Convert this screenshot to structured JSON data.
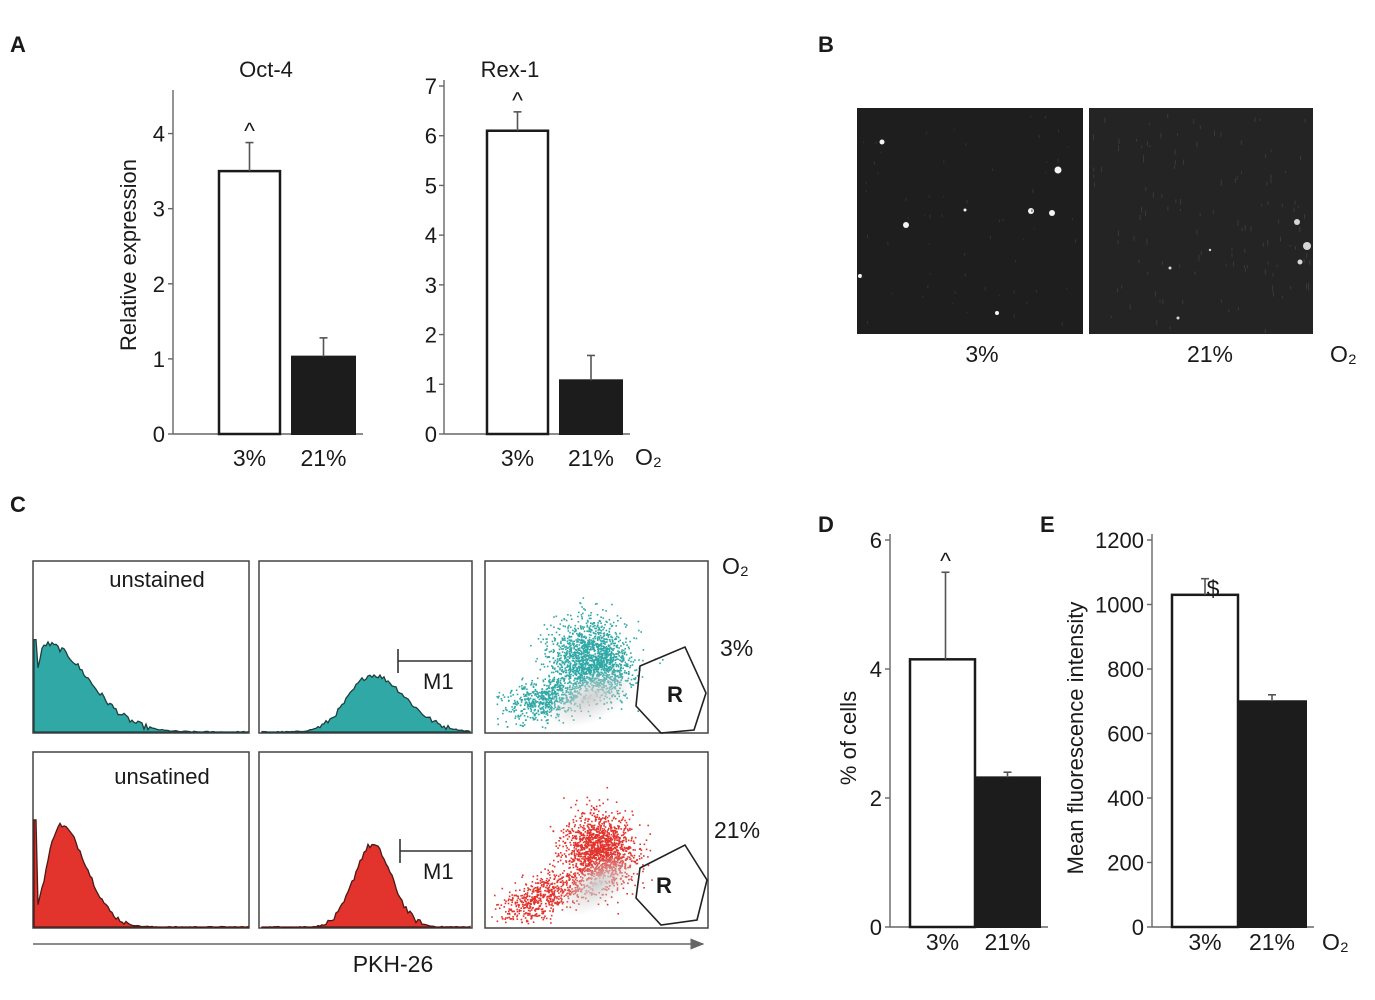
{
  "panel_letters": {
    "a": "A",
    "b": "B",
    "c": "C",
    "d": "D",
    "e": "E"
  },
  "o2_label": "O₂",
  "chart_data": [
    {
      "id": "oct4",
      "type": "bar",
      "title": "Oct-4",
      "ylabel": "Relative expression",
      "categories": [
        "3%",
        "21%"
      ],
      "values": [
        3.5,
        1.03
      ],
      "errors": [
        0.38,
        0.25
      ],
      "styles": [
        "open",
        "filled"
      ],
      "annotations": [
        "^",
        ""
      ],
      "ylim": [
        0,
        4.5
      ],
      "yticks": [
        "0",
        "1",
        "2",
        "3",
        "4"
      ]
    },
    {
      "id": "rex1",
      "type": "bar",
      "title": "Rex-1",
      "ylabel": "",
      "categories": [
        "3%",
        "21%"
      ],
      "values": [
        6.1,
        1.08
      ],
      "errors": [
        0.38,
        0.5
      ],
      "styles": [
        "open",
        "filled"
      ],
      "annotations": [
        "^",
        ""
      ],
      "ylim": [
        0,
        7
      ],
      "yticks": [
        "0",
        "1",
        "2",
        "3",
        "4",
        "5",
        "6",
        "7"
      ]
    },
    {
      "id": "pct_cells",
      "type": "bar",
      "title": "",
      "ylabel": "% of cells",
      "categories": [
        "3%",
        "21%"
      ],
      "values": [
        4.15,
        2.32
      ],
      "errors": [
        1.35,
        0.08
      ],
      "styles": [
        "open",
        "filled"
      ],
      "annotations": [
        "^",
        ""
      ],
      "ylim": [
        0,
        6
      ],
      "yticks": [
        "0",
        "2",
        "4",
        "6"
      ]
    },
    {
      "id": "mfi",
      "type": "bar",
      "title": "",
      "ylabel": "Mean fluorescence intensity",
      "categories": [
        "3%",
        "21%"
      ],
      "values": [
        1030,
        700
      ],
      "errors": [
        50,
        20
      ],
      "styles": [
        "open",
        "filled"
      ],
      "annotations": [
        "$",
        ""
      ],
      "ylim": [
        0,
        1200
      ],
      "yticks": [
        "0",
        "200",
        "400",
        "600",
        "800",
        "1000",
        "1200"
      ]
    }
  ],
  "panel_b": {
    "labels": [
      "3%",
      "21%"
    ]
  },
  "panel_c": {
    "row_labels": [
      "3%",
      "21%"
    ],
    "unstained_labels": [
      "unstained",
      "unsatined"
    ],
    "marker_label": "M1",
    "gate_label": "R",
    "xlabel": "PKH-26",
    "row_colors": [
      "#2fa8a6",
      "#e2332c"
    ]
  }
}
